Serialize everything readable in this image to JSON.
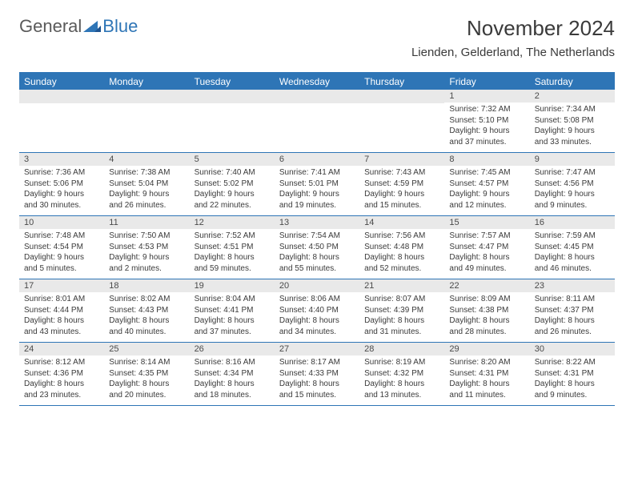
{
  "logo": {
    "general": "General",
    "blue": "Blue"
  },
  "title": "November 2024",
  "location": "Lienden, Gelderland, The Netherlands",
  "colors": {
    "accent": "#2e75b6",
    "header_bg": "#2e75b6",
    "daynum_bg": "#e9e9e9",
    "text": "#3a3a3a"
  },
  "day_headers": [
    "Sunday",
    "Monday",
    "Tuesday",
    "Wednesday",
    "Thursday",
    "Friday",
    "Saturday"
  ],
  "weeks": [
    [
      {
        "n": "",
        "sr": "",
        "ss": "",
        "dl": ""
      },
      {
        "n": "",
        "sr": "",
        "ss": "",
        "dl": ""
      },
      {
        "n": "",
        "sr": "",
        "ss": "",
        "dl": ""
      },
      {
        "n": "",
        "sr": "",
        "ss": "",
        "dl": ""
      },
      {
        "n": "",
        "sr": "",
        "ss": "",
        "dl": ""
      },
      {
        "n": "1",
        "sr": "Sunrise: 7:32 AM",
        "ss": "Sunset: 5:10 PM",
        "dl": "Daylight: 9 hours and 37 minutes."
      },
      {
        "n": "2",
        "sr": "Sunrise: 7:34 AM",
        "ss": "Sunset: 5:08 PM",
        "dl": "Daylight: 9 hours and 33 minutes."
      }
    ],
    [
      {
        "n": "3",
        "sr": "Sunrise: 7:36 AM",
        "ss": "Sunset: 5:06 PM",
        "dl": "Daylight: 9 hours and 30 minutes."
      },
      {
        "n": "4",
        "sr": "Sunrise: 7:38 AM",
        "ss": "Sunset: 5:04 PM",
        "dl": "Daylight: 9 hours and 26 minutes."
      },
      {
        "n": "5",
        "sr": "Sunrise: 7:40 AM",
        "ss": "Sunset: 5:02 PM",
        "dl": "Daylight: 9 hours and 22 minutes."
      },
      {
        "n": "6",
        "sr": "Sunrise: 7:41 AM",
        "ss": "Sunset: 5:01 PM",
        "dl": "Daylight: 9 hours and 19 minutes."
      },
      {
        "n": "7",
        "sr": "Sunrise: 7:43 AM",
        "ss": "Sunset: 4:59 PM",
        "dl": "Daylight: 9 hours and 15 minutes."
      },
      {
        "n": "8",
        "sr": "Sunrise: 7:45 AM",
        "ss": "Sunset: 4:57 PM",
        "dl": "Daylight: 9 hours and 12 minutes."
      },
      {
        "n": "9",
        "sr": "Sunrise: 7:47 AM",
        "ss": "Sunset: 4:56 PM",
        "dl": "Daylight: 9 hours and 9 minutes."
      }
    ],
    [
      {
        "n": "10",
        "sr": "Sunrise: 7:48 AM",
        "ss": "Sunset: 4:54 PM",
        "dl": "Daylight: 9 hours and 5 minutes."
      },
      {
        "n": "11",
        "sr": "Sunrise: 7:50 AM",
        "ss": "Sunset: 4:53 PM",
        "dl": "Daylight: 9 hours and 2 minutes."
      },
      {
        "n": "12",
        "sr": "Sunrise: 7:52 AM",
        "ss": "Sunset: 4:51 PM",
        "dl": "Daylight: 8 hours and 59 minutes."
      },
      {
        "n": "13",
        "sr": "Sunrise: 7:54 AM",
        "ss": "Sunset: 4:50 PM",
        "dl": "Daylight: 8 hours and 55 minutes."
      },
      {
        "n": "14",
        "sr": "Sunrise: 7:56 AM",
        "ss": "Sunset: 4:48 PM",
        "dl": "Daylight: 8 hours and 52 minutes."
      },
      {
        "n": "15",
        "sr": "Sunrise: 7:57 AM",
        "ss": "Sunset: 4:47 PM",
        "dl": "Daylight: 8 hours and 49 minutes."
      },
      {
        "n": "16",
        "sr": "Sunrise: 7:59 AM",
        "ss": "Sunset: 4:45 PM",
        "dl": "Daylight: 8 hours and 46 minutes."
      }
    ],
    [
      {
        "n": "17",
        "sr": "Sunrise: 8:01 AM",
        "ss": "Sunset: 4:44 PM",
        "dl": "Daylight: 8 hours and 43 minutes."
      },
      {
        "n": "18",
        "sr": "Sunrise: 8:02 AM",
        "ss": "Sunset: 4:43 PM",
        "dl": "Daylight: 8 hours and 40 minutes."
      },
      {
        "n": "19",
        "sr": "Sunrise: 8:04 AM",
        "ss": "Sunset: 4:41 PM",
        "dl": "Daylight: 8 hours and 37 minutes."
      },
      {
        "n": "20",
        "sr": "Sunrise: 8:06 AM",
        "ss": "Sunset: 4:40 PM",
        "dl": "Daylight: 8 hours and 34 minutes."
      },
      {
        "n": "21",
        "sr": "Sunrise: 8:07 AM",
        "ss": "Sunset: 4:39 PM",
        "dl": "Daylight: 8 hours and 31 minutes."
      },
      {
        "n": "22",
        "sr": "Sunrise: 8:09 AM",
        "ss": "Sunset: 4:38 PM",
        "dl": "Daylight: 8 hours and 28 minutes."
      },
      {
        "n": "23",
        "sr": "Sunrise: 8:11 AM",
        "ss": "Sunset: 4:37 PM",
        "dl": "Daylight: 8 hours and 26 minutes."
      }
    ],
    [
      {
        "n": "24",
        "sr": "Sunrise: 8:12 AM",
        "ss": "Sunset: 4:36 PM",
        "dl": "Daylight: 8 hours and 23 minutes."
      },
      {
        "n": "25",
        "sr": "Sunrise: 8:14 AM",
        "ss": "Sunset: 4:35 PM",
        "dl": "Daylight: 8 hours and 20 minutes."
      },
      {
        "n": "26",
        "sr": "Sunrise: 8:16 AM",
        "ss": "Sunset: 4:34 PM",
        "dl": "Daylight: 8 hours and 18 minutes."
      },
      {
        "n": "27",
        "sr": "Sunrise: 8:17 AM",
        "ss": "Sunset: 4:33 PM",
        "dl": "Daylight: 8 hours and 15 minutes."
      },
      {
        "n": "28",
        "sr": "Sunrise: 8:19 AM",
        "ss": "Sunset: 4:32 PM",
        "dl": "Daylight: 8 hours and 13 minutes."
      },
      {
        "n": "29",
        "sr": "Sunrise: 8:20 AM",
        "ss": "Sunset: 4:31 PM",
        "dl": "Daylight: 8 hours and 11 minutes."
      },
      {
        "n": "30",
        "sr": "Sunrise: 8:22 AM",
        "ss": "Sunset: 4:31 PM",
        "dl": "Daylight: 8 hours and 9 minutes."
      }
    ]
  ]
}
